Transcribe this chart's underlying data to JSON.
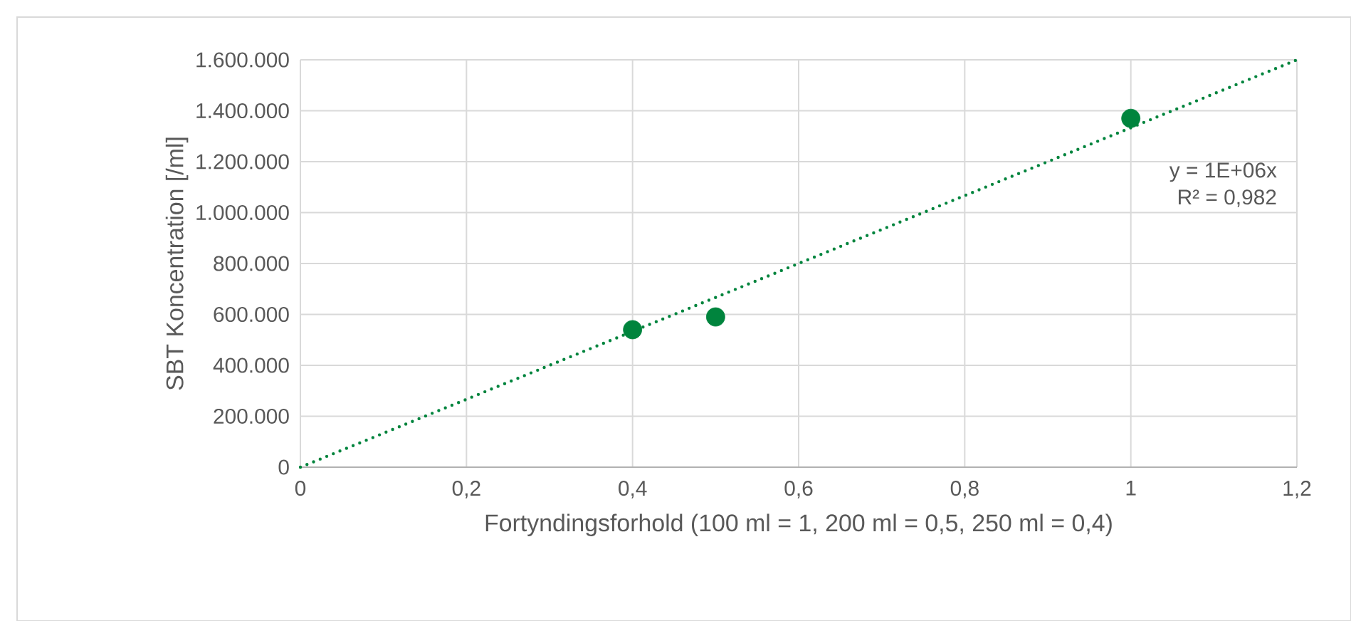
{
  "chart_data": {
    "type": "scatter",
    "xlabel": "Fortyndingsforhold (100 ml = 1, 200 ml = 0,5, 250 ml = 0,4)",
    "ylabel": "SBT Koncentration [/ml]",
    "series": [
      {
        "color": "#00843d",
        "x": [
          0.4,
          0.5,
          1
        ],
        "values": [
          540000,
          590000,
          1370000
        ],
        "marker": "circle"
      },
      {
        "type": "line",
        "color": "#00843d",
        "x": [
          0,
          1.2
        ],
        "values": [
          0,
          1600000
        ],
        "line_style": "dotted",
        "marker": "none"
      }
    ],
    "annotations": [
      "y = 1E+06x",
      "R² = 0,982"
    ],
    "xlim": [
      0,
      1.2
    ],
    "ylim": [
      0,
      1600000
    ],
    "xticks": [
      0,
      {
        "value": 0.2,
        "label": "0,2"
      },
      {
        "value": 0.4,
        "label": "0,4"
      },
      {
        "value": 0.6,
        "label": "0,6"
      },
      {
        "value": 0.8,
        "label": "0,8"
      },
      1,
      {
        "value": 1.2,
        "label": "1,2"
      }
    ],
    "yticks": [
      0,
      {
        "value": 200000,
        "label": "200.000"
      },
      {
        "value": 400000,
        "label": "400.000"
      },
      {
        "value": 600000,
        "label": "600.000"
      },
      {
        "value": 800000,
        "label": "800.000"
      },
      {
        "value": 1000000,
        "label": "1.000.000"
      },
      {
        "value": 1200000,
        "label": "1.200.000"
      },
      {
        "value": 1400000,
        "label": "1.400.000"
      },
      {
        "value": 1600000,
        "label": "1.600.000"
      }
    ],
    "grid": true
  }
}
